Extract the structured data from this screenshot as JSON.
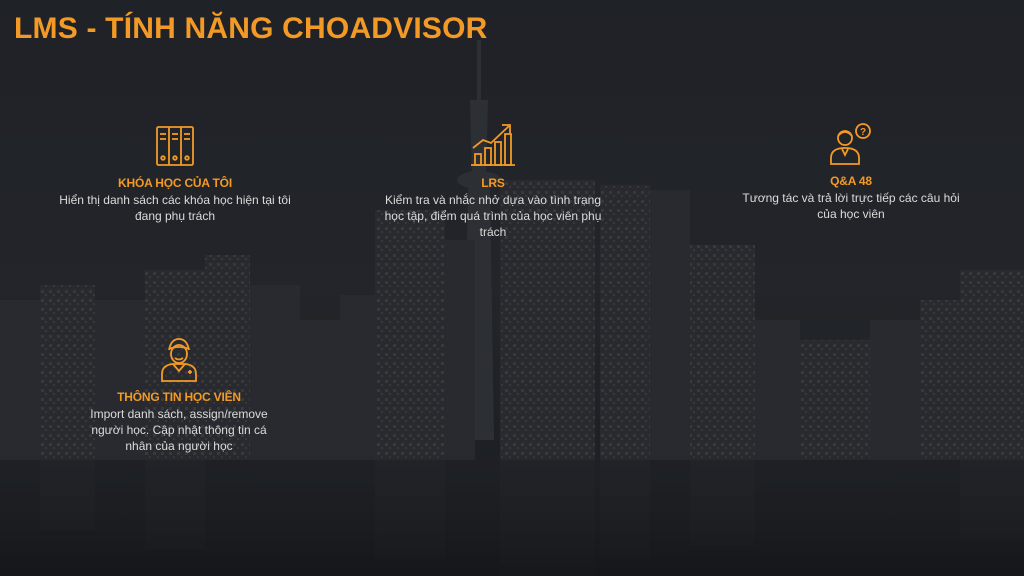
{
  "slide": {
    "title": "LMS - TÍNH NĂNG CHOADVISOR"
  },
  "colors": {
    "accent": "#f39a26",
    "text": "#dcdcdc",
    "background": "#202229"
  },
  "features": [
    {
      "icon": "books-icon",
      "title": "KHÓA HỌC CỦA TÔI",
      "description": "Hiển thị danh sách các khóa học hiện tại tôi đang phụ trách"
    },
    {
      "icon": "growth-chart-icon",
      "title": "LRS",
      "description": "Kiểm tra và nhắc nhở dựa vào tình trạng học tập, điểm quá trình của học viên phụ trách"
    },
    {
      "icon": "person-question-icon",
      "title": "Q&A 48",
      "description": "Tương tác và trả lời trực tiếp các câu hỏi của học viên"
    },
    {
      "icon": "student-avatar-icon",
      "title": "THÔNG TIN HỌC VIÊN",
      "description": "Import danh sách, assign/remove người học. Cập nhật thông tin cá nhân của người học"
    }
  ]
}
